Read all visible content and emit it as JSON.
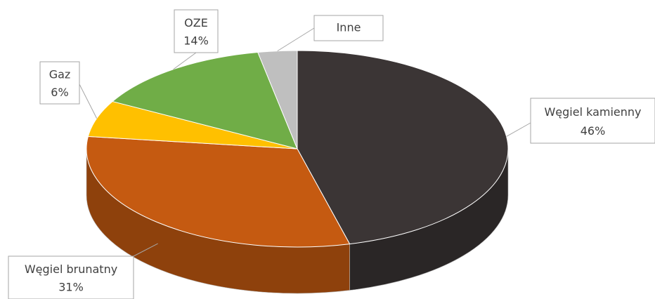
{
  "chart_data": {
    "type": "pie",
    "categories": [
      "Węgiel kamienny",
      "Węgiel brunatny",
      "Gaz",
      "OZE",
      "Inne"
    ],
    "values": [
      46,
      31,
      6,
      14,
      3
    ],
    "value_labels": [
      "46%",
      "31%",
      "6%",
      "14%",
      null
    ],
    "colors": [
      "#3b3535",
      "#c55a11",
      "#ffc000",
      "#70ad47",
      "#bfbfbf"
    ]
  }
}
